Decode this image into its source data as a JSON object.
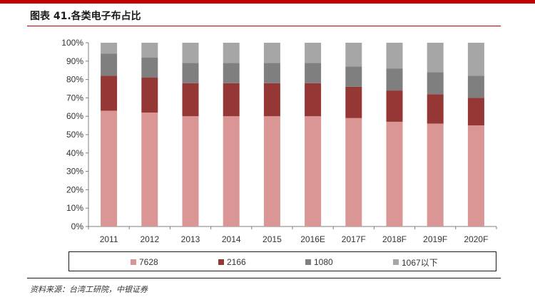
{
  "header": {
    "title": "图表 41.各类电子布占比",
    "accent_color": "#C00000"
  },
  "source": {
    "text": "资料来源：台湾工研院，中银证券"
  },
  "chart_data": {
    "type": "bar",
    "stacked": true,
    "categories": [
      "2011",
      "2012",
      "2013",
      "2014",
      "2015",
      "2016E",
      "2017F",
      "2018F",
      "2019F",
      "2020F"
    ],
    "series": [
      {
        "name": "7628",
        "color": "#DA9694",
        "values": [
          63,
          62,
          60,
          60,
          60,
          60,
          59,
          57,
          56,
          55
        ]
      },
      {
        "name": "2166",
        "color": "#953735",
        "values": [
          19,
          19,
          18,
          18,
          18,
          18,
          17,
          17,
          16,
          15
        ]
      },
      {
        "name": "1080",
        "color": "#7F7F7F",
        "values": [
          12,
          11,
          11,
          11,
          11,
          11,
          11,
          12,
          12,
          12
        ]
      },
      {
        "name": "1067以下",
        "color": "#A6A6A6",
        "values": [
          6,
          8,
          11,
          11,
          11,
          11,
          13,
          14,
          16,
          18
        ]
      }
    ],
    "ylim": [
      0,
      100
    ],
    "yticks": [
      "0%",
      "10%",
      "20%",
      "30%",
      "40%",
      "50%",
      "60%",
      "70%",
      "80%",
      "90%",
      "100%"
    ],
    "title": "",
    "xlabel": "",
    "ylabel": "",
    "grid": false,
    "legend_position": "bottom"
  }
}
